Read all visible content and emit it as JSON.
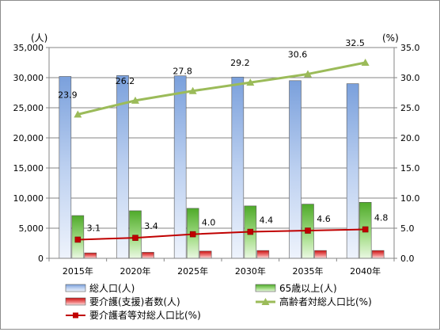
{
  "chart_data": {
    "type": "bar",
    "categories": [
      "2015年",
      "2020年",
      "2025年",
      "2030年",
      "2035年",
      "2040年"
    ],
    "series": [
      {
        "name": "総人口(人)",
        "type": "bar",
        "axis": "left",
        "color": "#95b3e6",
        "values": [
          30200,
          30350,
          30300,
          30100,
          29500,
          29000
        ]
      },
      {
        "name": "65歳以上(人)",
        "type": "bar",
        "axis": "left",
        "color": "#6ec241",
        "values": [
          7100,
          7900,
          8300,
          8700,
          9000,
          9300
        ]
      },
      {
        "name": "要介護(支援)者数(人)",
        "type": "bar",
        "axis": "left",
        "color": "#d92020",
        "values": [
          900,
          1000,
          1200,
          1300,
          1300,
          1300
        ]
      },
      {
        "name": "高齢者対総人口比(%)",
        "type": "line",
        "axis": "right",
        "color": "#9bbb59",
        "values": [
          23.9,
          26.2,
          27.8,
          29.2,
          30.6,
          32.5
        ],
        "labels": [
          "23.9",
          "26.2",
          "27.8",
          "29.2",
          "30.6",
          "32.5"
        ]
      },
      {
        "name": "要介護者等対総人口比(%)",
        "type": "line",
        "axis": "right",
        "color": "#c00000",
        "values": [
          3.1,
          3.4,
          4.0,
          4.4,
          4.6,
          4.8
        ],
        "labels": [
          "3.1",
          "3.4",
          "4.0",
          "4.4",
          "4.6",
          "4.8"
        ]
      }
    ],
    "left_axis": {
      "unit": "(人)",
      "ylim": [
        0,
        35000
      ],
      "ticks": [
        0,
        5000,
        10000,
        15000,
        20000,
        25000,
        30000,
        35000
      ],
      "tick_labels": [
        "0",
        "5,000",
        "10,000",
        "15,000",
        "20,000",
        "25,000",
        "30,000",
        "35,000"
      ]
    },
    "right_axis": {
      "unit": "(%)",
      "ylim": [
        0,
        35
      ],
      "ticks": [
        0,
        5,
        10,
        15,
        20,
        25,
        30,
        35
      ],
      "tick_labels": [
        "0.0",
        "5.0",
        "10.0",
        "15.0",
        "20.0",
        "25.0",
        "30.0",
        "35.0"
      ]
    },
    "grid": true,
    "legend_position": "bottom"
  }
}
